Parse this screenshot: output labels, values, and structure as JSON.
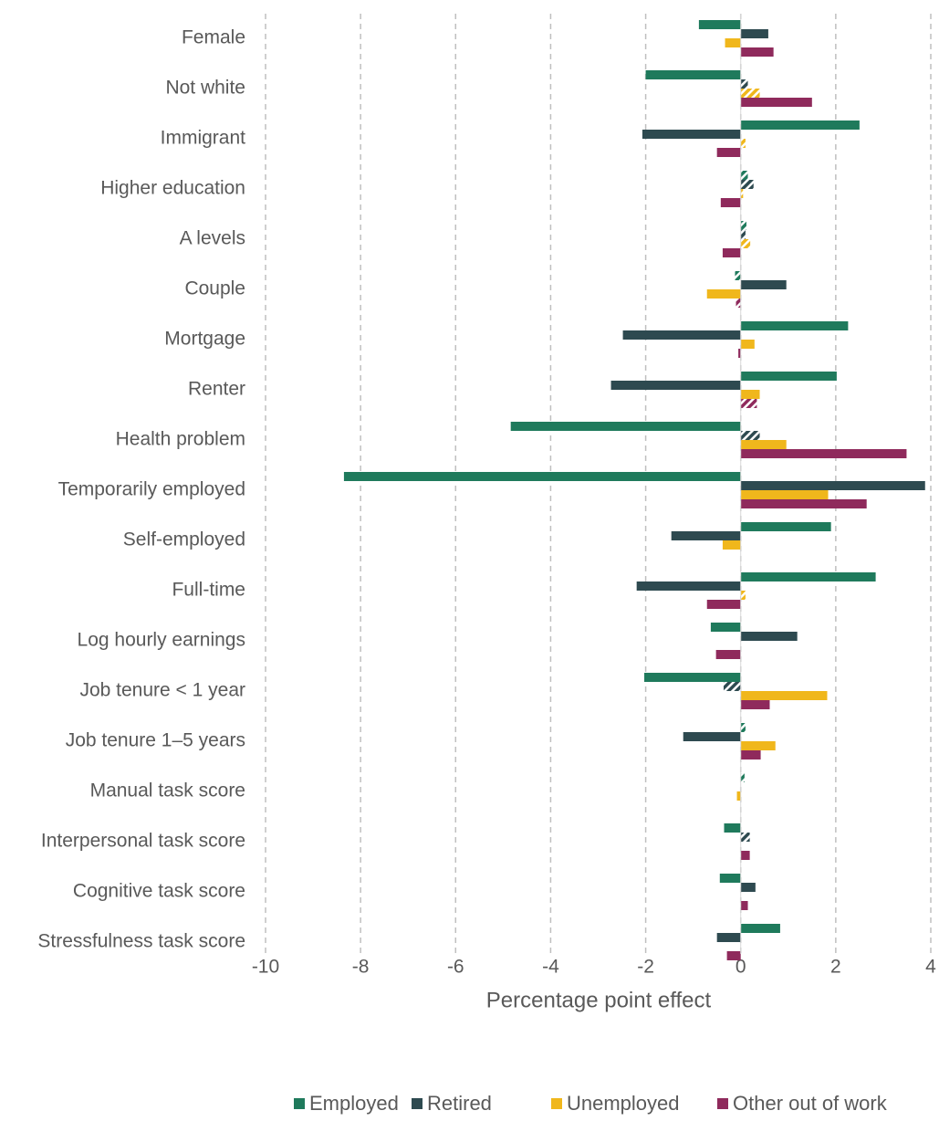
{
  "chart_data": {
    "type": "hbar",
    "x_label": "Percentage point effect",
    "categories": [
      "Female",
      "Not white",
      "Immigrant",
      "Higher education",
      "A levels",
      "Couple",
      "Mortgage",
      "Renter",
      "Health problem",
      "Temporarily employed",
      "Self-employed",
      "Full-time",
      "Log hourly earnings",
      "Job tenure < 1 year",
      "Job tenure 1–5 years",
      "Manual task score",
      "Interpersonal task score",
      "Cognitive task score",
      "Stressfulness task score"
    ],
    "series": [
      {
        "name": "Employed",
        "color": "#1f7a5c",
        "values": [
          -0.88,
          -2.0,
          2.5,
          0.15,
          0.12,
          -0.12,
          2.26,
          2.02,
          -4.84,
          -8.35,
          1.9,
          2.84,
          -0.63,
          -2.03,
          0.1,
          0.08,
          -0.35,
          -0.44,
          0.83
        ],
        "hatched": [
          false,
          false,
          false,
          true,
          true,
          true,
          false,
          false,
          false,
          false,
          false,
          false,
          false,
          false,
          true,
          true,
          false,
          false,
          false
        ]
      },
      {
        "name": "Retired",
        "color": "#2e4a50",
        "values": [
          0.58,
          0.15,
          -2.07,
          0.27,
          0.1,
          0.96,
          -2.48,
          -2.73,
          0.4,
          3.88,
          -1.46,
          -2.19,
          1.19,
          -0.36,
          -1.21,
          null,
          0.19,
          0.31,
          -0.5
        ],
        "hatched": [
          false,
          true,
          false,
          true,
          true,
          false,
          false,
          false,
          true,
          false,
          false,
          false,
          false,
          true,
          false,
          false,
          true,
          false,
          false
        ]
      },
      {
        "name": "Unemployed",
        "color": "#f0b71c",
        "values": [
          -0.33,
          0.4,
          0.1,
          0.05,
          0.2,
          -0.71,
          0.29,
          0.4,
          0.96,
          1.84,
          -0.38,
          0.1,
          null,
          1.82,
          0.73,
          -0.08,
          null,
          null,
          null
        ],
        "hatched": [
          false,
          true,
          true,
          true,
          true,
          false,
          false,
          false,
          false,
          false,
          false,
          true,
          false,
          false,
          false,
          false,
          false,
          false,
          false
        ]
      },
      {
        "name": "Other out of work",
        "color": "#8f2a5c",
        "values": [
          0.69,
          1.5,
          -0.5,
          -0.42,
          -0.38,
          -0.1,
          -0.05,
          0.34,
          3.49,
          2.65,
          null,
          -0.71,
          -0.52,
          0.61,
          0.42,
          null,
          0.19,
          0.15,
          -0.29
        ],
        "hatched": [
          false,
          false,
          false,
          false,
          false,
          true,
          false,
          true,
          false,
          false,
          false,
          false,
          false,
          false,
          false,
          false,
          false,
          false,
          false
        ]
      }
    ],
    "xlim": [
      -10,
      4
    ],
    "xticks": [
      -10,
      -8,
      -6,
      -4,
      -2,
      0,
      2,
      4
    ],
    "grid": true,
    "legend": "bottom"
  }
}
